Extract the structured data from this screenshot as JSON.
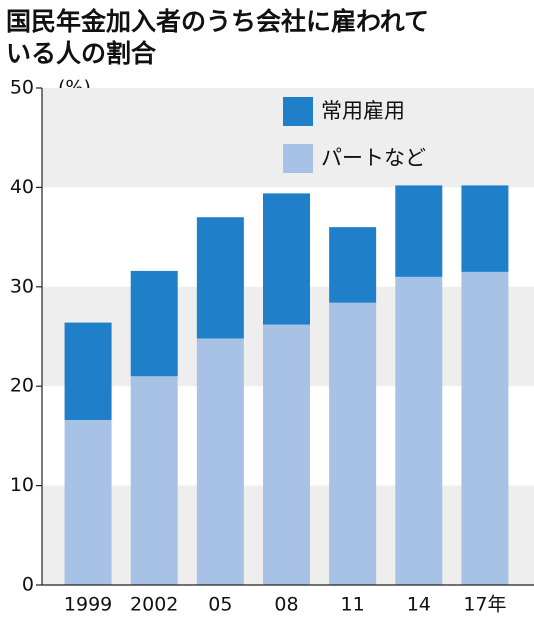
{
  "chart_data": {
    "type": "stacked_bar",
    "title": [
      "国民年金加入者のうち会社に雇われて",
      "いる人の割合"
    ],
    "y_unit": "(%)",
    "categories": [
      "1999",
      "2002",
      "05",
      "08",
      "11",
      "14",
      "17年"
    ],
    "series": [
      {
        "name": "常用雇用",
        "color": "#1f7fc9",
        "values": [
          9.8,
          10.6,
          12.2,
          13.2,
          7.6,
          9.2,
          8.7
        ]
      },
      {
        "name": "パートなど",
        "color": "#a8c2e6",
        "values": [
          16.6,
          21.0,
          24.8,
          26.2,
          28.4,
          31.0,
          31.5
        ]
      }
    ],
    "ylim": [
      0,
      50
    ],
    "yticks": [
      0,
      10,
      20,
      30,
      40,
      50
    ]
  }
}
